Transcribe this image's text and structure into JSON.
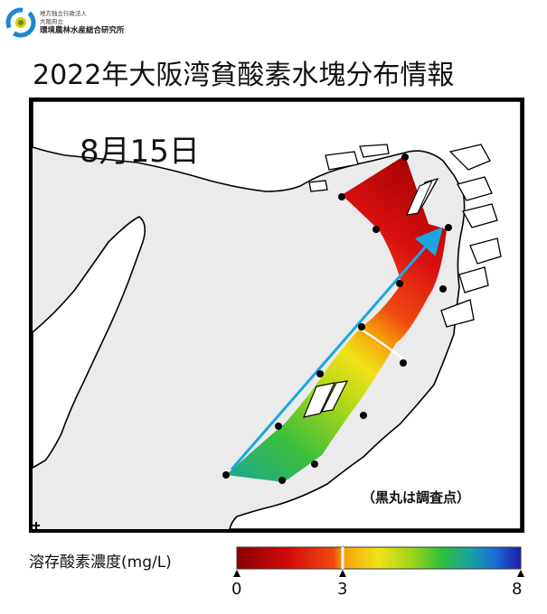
{
  "header": {
    "logo": {
      "line1": "地方独立行政法人",
      "line2": "大阪府立",
      "line3": "環境農林水産総合研究所"
    },
    "title": "2022年大阪湾貧酸素水塊分布情報"
  },
  "map": {
    "date": "8月15日",
    "note": "（黒丸は調査点）",
    "colors": {
      "sea": "#ebebeb",
      "land": "#ffffff",
      "coast": "#000000",
      "arrow": "#1aa7e0",
      "station": "#000000"
    }
  },
  "colorbar": {
    "title": "溶存酸素濃度(mg/L)",
    "min_label": "0",
    "mid_label": "3",
    "max_label": "8",
    "min": 0,
    "mid": 3,
    "max": 8
  }
}
